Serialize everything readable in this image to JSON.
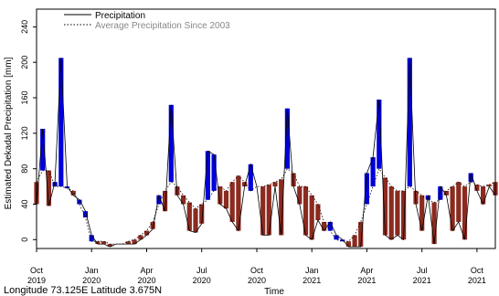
{
  "chart_data": {
    "type": "line",
    "xlabel": "Time",
    "ylabel": "Estimated Dekadal Precipitation [mm]",
    "ylim": [
      -10,
      260
    ],
    "yticks": [
      0,
      40,
      80,
      120,
      160,
      200,
      240
    ],
    "ytick_labels": [
      "0",
      "40",
      "80",
      "120",
      "160",
      "200",
      "240"
    ],
    "grid": false,
    "legend_position": "top-left",
    "legend": [
      {
        "label": "Precipitation",
        "style": "solid"
      },
      {
        "label": "Average Precipitation Since 2003",
        "style": "dotted"
      }
    ],
    "x_ticks": [
      {
        "label": "Oct",
        "year": "2019",
        "dekad": 0
      },
      {
        "label": "Jan",
        "year": "2020",
        "dekad": 9
      },
      {
        "label": "Apr",
        "year": "2020",
        "dekad": 18
      },
      {
        "label": "Jul",
        "year": "2020",
        "dekad": 27
      },
      {
        "label": "Oct",
        "year": "2020",
        "dekad": 36
      },
      {
        "label": "Jan",
        "year": "2021",
        "dekad": 45
      },
      {
        "label": "Apr",
        "year": "2021",
        "dekad": 54
      },
      {
        "label": "Jul",
        "year": "2021",
        "dekad": 63
      },
      {
        "label": "Oct",
        "year": "2021",
        "dekad": 72
      }
    ],
    "x_range": [
      0,
      75
    ],
    "series": [
      {
        "name": "Precipitation",
        "values": [
          40,
          125,
          38,
          65,
          205,
          60,
          50,
          45,
          32,
          5,
          -5,
          -5,
          -8,
          -5,
          -5,
          -5,
          -5,
          0,
          5,
          12,
          50,
          32,
          152,
          50,
          40,
          10,
          8,
          18,
          100,
          96,
          40,
          35,
          20,
          10,
          60,
          85,
          60,
          5,
          5,
          60,
          5,
          148,
          60,
          40,
          5,
          0,
          22,
          10,
          20,
          5,
          0,
          -8,
          -8,
          -8,
          75,
          93,
          158,
          5,
          0,
          5,
          0,
          205,
          40,
          10,
          50,
          -5,
          60,
          50,
          10,
          20,
          0,
          75,
          55,
          40,
          60,
          50
        ],
        "color": "#0000dd"
      },
      {
        "name": "Average Precipitation Since 2003",
        "values": [
          65,
          78,
          78,
          60,
          60,
          58,
          55,
          40,
          25,
          -2,
          -2,
          -2,
          -5,
          -5,
          -5,
          -2,
          0,
          5,
          10,
          20,
          40,
          55,
          65,
          60,
          50,
          42,
          35,
          40,
          45,
          55,
          60,
          55,
          65,
          72,
          65,
          55,
          60,
          60,
          62,
          65,
          68,
          80,
          75,
          60,
          60,
          50,
          40,
          20,
          10,
          0,
          -2,
          -2,
          5,
          20,
          40,
          60,
          80,
          70,
          60,
          55,
          55,
          60,
          55,
          50,
          45,
          42,
          45,
          55,
          60,
          65,
          60,
          65,
          62,
          60,
          62,
          65
        ],
        "color": "#8b2a1f"
      }
    ]
  },
  "footer": {
    "coordinates": "Longitude 73.125E Latitude 3.675N"
  }
}
